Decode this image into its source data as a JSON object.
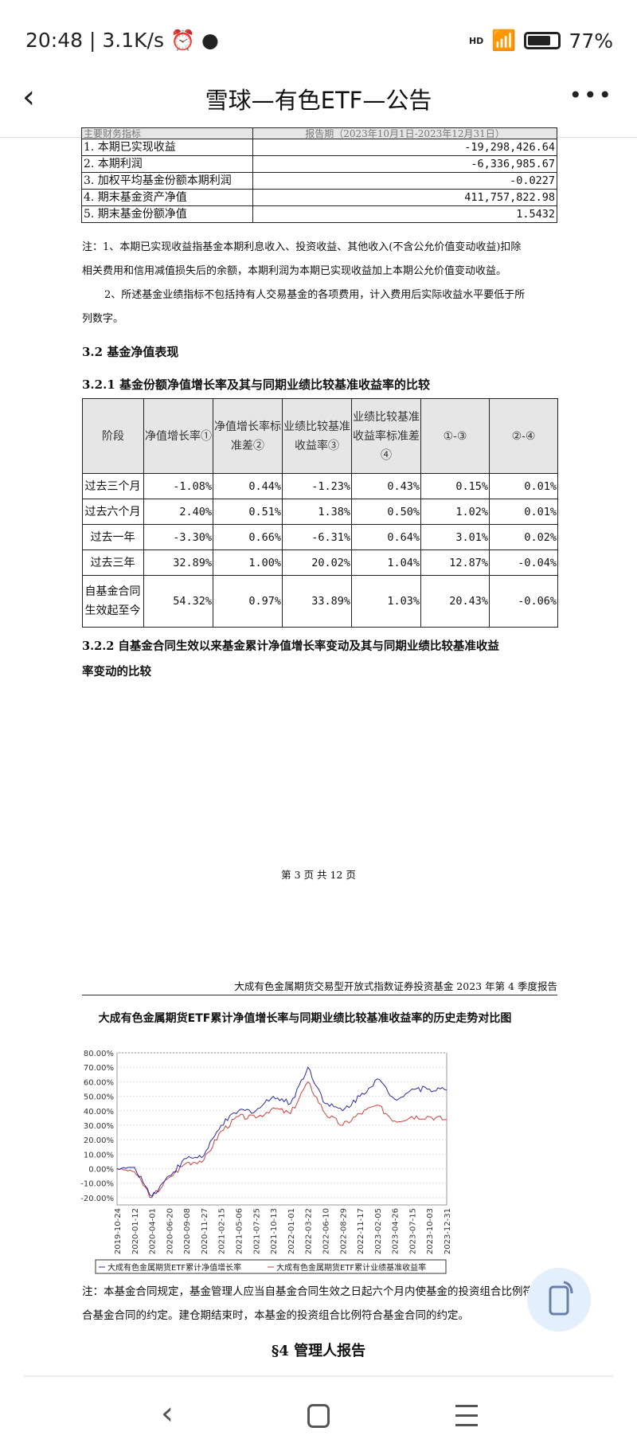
{
  "status_bar": {
    "time": "20:48",
    "net_speed": "3.1K/s",
    "signal_label": "HD",
    "battery": "77%",
    "battery_level": 0.77
  },
  "app_bar": {
    "title": "雪球—有色ETF—公告",
    "back_icon": "chevron-left-icon",
    "more_icon": "more-horizontal-icon"
  },
  "table1": {
    "header": [
      "主要财务指标",
      "报告期（2023年10月1日-2023年12月31日）"
    ],
    "rows": [
      {
        "label": "1. 本期已实现收益",
        "value": "-19,298,426.64"
      },
      {
        "label": "2. 本期利润",
        "value": "-6,336,985.67"
      },
      {
        "label": "3. 加权平均基金份额本期利润",
        "value": "-0.0227"
      },
      {
        "label": "4. 期末基金资产净值",
        "value": "411,757,822.98"
      },
      {
        "label": "5. 期末基金份额净值",
        "value": "1.5432"
      }
    ]
  },
  "note1": {
    "line1": "注：1、本期已实现收益指基金本期利息收入、投资收益、其他收入(不含公允价值变动收益)扣除",
    "line2": "相关费用和信用减值损失后的余额，本期利润为本期已实现收益加上本期公允价值变动收益。",
    "line3": "2、所述基金业绩指标不包括持有人交易基金的各项费用，计入费用后实际收益水平要低于所",
    "line4": "列数字。"
  },
  "section_3_2": "3.2 基金净值表现",
  "section_3_2_1": "3.2.1 基金份额净值增长率及其与同期业绩比较基准收益率的比较",
  "table2": {
    "headers": [
      "阶段",
      "净值增长率①",
      "净值增长率标准差②",
      "业绩比较基准收益率③",
      "业绩比较基准收益率标准差④",
      "①-③",
      "②-④"
    ],
    "rows": [
      [
        "过去三个月",
        "-1.08%",
        "0.44%",
        "-1.23%",
        "0.43%",
        "0.15%",
        "0.01%"
      ],
      [
        "过去六个月",
        "2.40%",
        "0.51%",
        "1.38%",
        "0.50%",
        "1.02%",
        "0.01%"
      ],
      [
        "过去一年",
        "-3.30%",
        "0.66%",
        "-6.31%",
        "0.64%",
        "3.01%",
        "0.02%"
      ],
      [
        "过去三年",
        "32.89%",
        "1.00%",
        "20.02%",
        "1.04%",
        "12.87%",
        "-0.04%"
      ],
      [
        "自基金合同生效起至今",
        "54.32%",
        "0.97%",
        "33.89%",
        "1.03%",
        "20.43%",
        "-0.06%"
      ]
    ]
  },
  "section_3_2_2": {
    "line1": "3.2.2 自基金合同生效以来基金累计净值增长率变动及其与同期业绩比较基准收益",
    "line2": "率变动的比较"
  },
  "page_footer": "第 3 页 共 12 页",
  "doc_header": "大成有色金属期货交易型开放式指数证券投资基金 2023 年第 4 季度报告",
  "chart_data": {
    "type": "line",
    "title": "大成有色金属期货ETF累计净值增长率与同期业绩比较基准收益率的历史走势对比图",
    "x": [
      "2019-10-24",
      "2020-01-12",
      "2020-04-01",
      "2020-06-20",
      "2020-09-08",
      "2020-11-27",
      "2021-02-15",
      "2021-05-06",
      "2021-07-25",
      "2021-10-13",
      "2022-01-01",
      "2022-03-22",
      "2022-06-10",
      "2022-08-29",
      "2022-11-17",
      "2023-02-05",
      "2023-04-26",
      "2023-07-15",
      "2023-10-03",
      "2023-12-31"
    ],
    "yticks": [
      "80.00%",
      "70.00%",
      "60.00%",
      "50.00%",
      "40.00%",
      "30.00%",
      "20.00%",
      "10.00%",
      "0.00%",
      "-10.00%",
      "-20.00%"
    ],
    "ylim": [
      -25,
      80
    ],
    "grid": true,
    "legend_position": "bottom",
    "series": [
      {
        "name": "大成有色金属期货ETF累计净值增长率",
        "color": "#2a2aa8",
        "values": [
          0,
          1,
          -19,
          -5,
          7,
          9,
          30,
          40,
          40,
          50,
          45,
          70,
          45,
          40,
          50,
          62,
          48,
          55,
          55,
          54.32
        ]
      },
      {
        "name": "大成有色金属期货ETF累计业绩基准收益率",
        "color": "#d04040",
        "values": [
          0,
          -2,
          -20,
          -6,
          4,
          6,
          26,
          36,
          35,
          42,
          38,
          60,
          38,
          30,
          38,
          44,
          33,
          36,
          36,
          33.89
        ]
      }
    ]
  },
  "note2": {
    "line1": "注：本基金合同规定，基金管理人应当自基金合同生效之日起六个月内使基金的投资组合比例符",
    "line2": "合基金合同的约定。建仓期结束时，本基金的投资组合比例符合基金合同的约定。"
  },
  "section_4": "§4 管理人报告",
  "nav_bar": {
    "back_icon": "back-icon",
    "home_icon": "home-icon",
    "menu_icon": "menu-icon"
  }
}
